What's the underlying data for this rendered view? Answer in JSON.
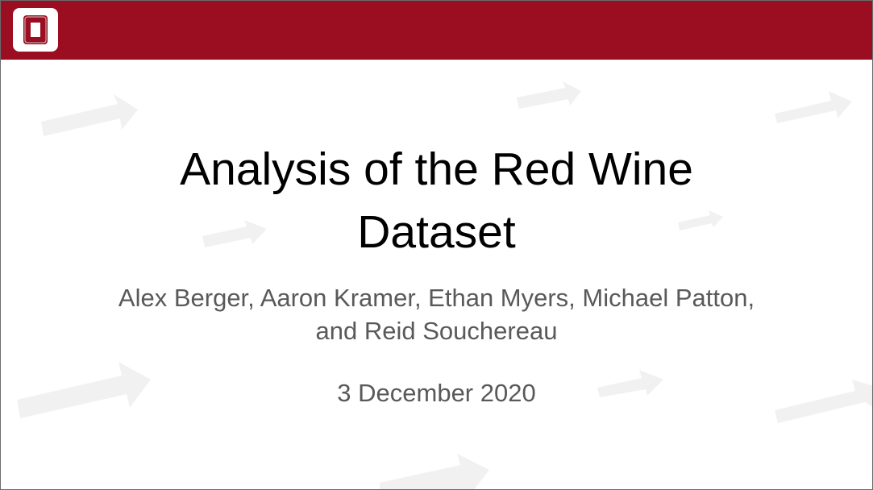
{
  "header": {
    "bar_color": "#9b0e22",
    "logo_icon": "block-o-logo-icon",
    "logo_letter": "O"
  },
  "slide": {
    "title_lines": [
      "Analysis of the Red Wine",
      "Dataset"
    ],
    "author_lines": [
      "Alex Berger, Aaron Kramer, Ethan Myers, Michael Patton,",
      "and Reid Souchereau"
    ],
    "date": "3 December 2020"
  },
  "colors": {
    "title": "#000000",
    "subtitle": "#595959",
    "arrow_watermark": "#f1f1f1"
  }
}
